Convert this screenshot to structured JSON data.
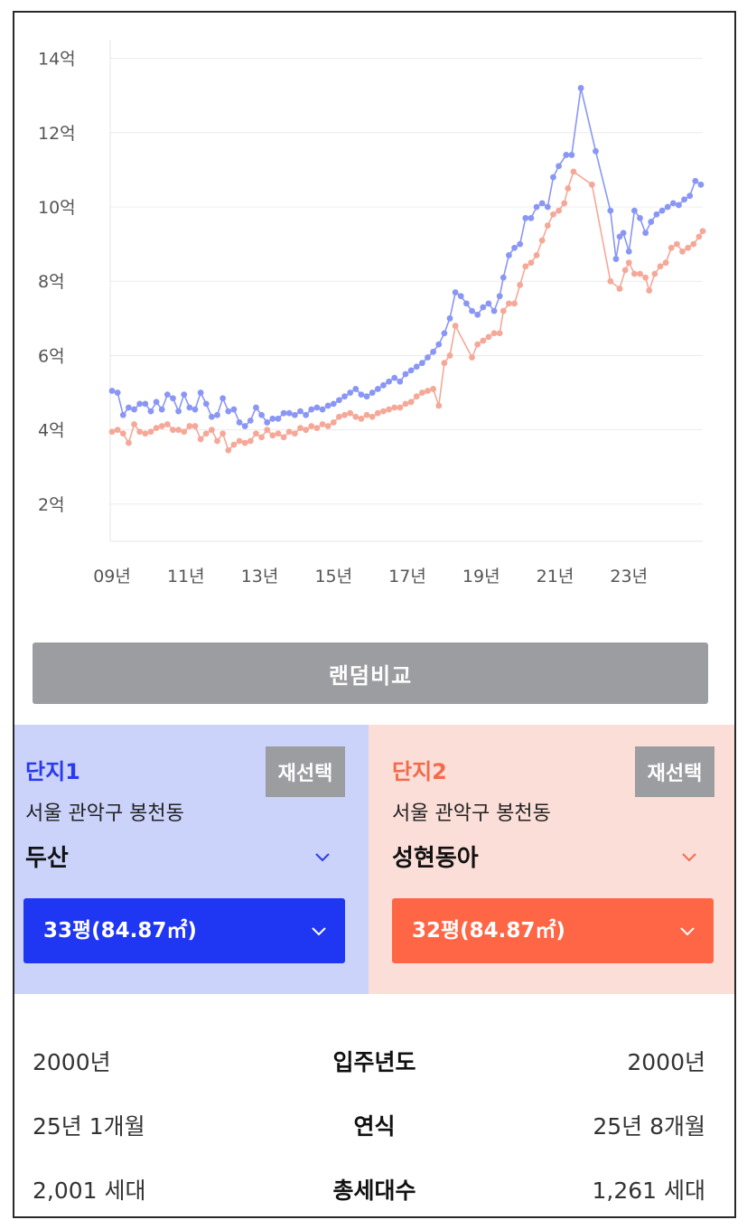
{
  "chart_data": {
    "type": "line",
    "ylim": [
      1,
      14.5
    ],
    "y_ticks": [
      {
        "v": 2,
        "label": "2억"
      },
      {
        "v": 4,
        "label": "4억"
      },
      {
        "v": 6,
        "label": "6억"
      },
      {
        "v": 8,
        "label": "8억"
      },
      {
        "v": 10,
        "label": "10억"
      },
      {
        "v": 12,
        "label": "12억"
      },
      {
        "v": 14,
        "label": "14억"
      }
    ],
    "x_ticks": [
      {
        "v": 2009,
        "label": "09년"
      },
      {
        "v": 2011,
        "label": "11년"
      },
      {
        "v": 2013,
        "label": "13년"
      },
      {
        "v": 2015,
        "label": "15년"
      },
      {
        "v": 2017,
        "label": "17년"
      },
      {
        "v": 2019,
        "label": "19년"
      },
      {
        "v": 2021,
        "label": "21년"
      },
      {
        "v": 2023,
        "label": "23년"
      }
    ],
    "xlim": [
      2008.95,
      2025.0
    ],
    "grid": true,
    "series": [
      {
        "color": "#8a96f5",
        "points": [
          [
            2009.0,
            5.05
          ],
          [
            2009.15,
            5.0
          ],
          [
            2009.3,
            4.4
          ],
          [
            2009.45,
            4.6
          ],
          [
            2009.6,
            4.55
          ],
          [
            2009.75,
            4.7
          ],
          [
            2009.9,
            4.7
          ],
          [
            2010.05,
            4.5
          ],
          [
            2010.2,
            4.75
          ],
          [
            2010.35,
            4.55
          ],
          [
            2010.5,
            4.95
          ],
          [
            2010.65,
            4.85
          ],
          [
            2010.8,
            4.5
          ],
          [
            2010.95,
            4.95
          ],
          [
            2011.1,
            4.6
          ],
          [
            2011.25,
            4.55
          ],
          [
            2011.4,
            5.0
          ],
          [
            2011.55,
            4.7
          ],
          [
            2011.7,
            4.35
          ],
          [
            2011.85,
            4.4
          ],
          [
            2012.0,
            4.85
          ],
          [
            2012.15,
            4.5
          ],
          [
            2012.3,
            4.55
          ],
          [
            2012.45,
            4.2
          ],
          [
            2012.6,
            4.1
          ],
          [
            2012.75,
            4.25
          ],
          [
            2012.9,
            4.6
          ],
          [
            2013.05,
            4.4
          ],
          [
            2013.2,
            4.2
          ],
          [
            2013.35,
            4.3
          ],
          [
            2013.5,
            4.3
          ],
          [
            2013.65,
            4.45
          ],
          [
            2013.8,
            4.45
          ],
          [
            2013.95,
            4.4
          ],
          [
            2014.1,
            4.5
          ],
          [
            2014.25,
            4.4
          ],
          [
            2014.4,
            4.55
          ],
          [
            2014.55,
            4.6
          ],
          [
            2014.7,
            4.55
          ],
          [
            2014.85,
            4.65
          ],
          [
            2015.0,
            4.7
          ],
          [
            2015.15,
            4.8
          ],
          [
            2015.3,
            4.9
          ],
          [
            2015.45,
            5.0
          ],
          [
            2015.6,
            5.1
          ],
          [
            2015.75,
            4.95
          ],
          [
            2015.9,
            4.9
          ],
          [
            2016.05,
            5.0
          ],
          [
            2016.2,
            5.1
          ],
          [
            2016.35,
            5.2
          ],
          [
            2016.5,
            5.3
          ],
          [
            2016.65,
            5.4
          ],
          [
            2016.8,
            5.3
          ],
          [
            2016.95,
            5.5
          ],
          [
            2017.1,
            5.6
          ],
          [
            2017.25,
            5.7
          ],
          [
            2017.4,
            5.8
          ],
          [
            2017.55,
            5.95
          ],
          [
            2017.7,
            6.1
          ],
          [
            2017.85,
            6.3
          ],
          [
            2018.0,
            6.6
          ],
          [
            2018.15,
            7.0
          ],
          [
            2018.3,
            7.7
          ],
          [
            2018.45,
            7.6
          ],
          [
            2018.6,
            7.4
          ],
          [
            2018.75,
            7.2
          ],
          [
            2018.9,
            7.1
          ],
          [
            2019.05,
            7.3
          ],
          [
            2019.2,
            7.4
          ],
          [
            2019.35,
            7.2
          ],
          [
            2019.5,
            7.6
          ],
          [
            2019.6,
            8.1
          ],
          [
            2019.75,
            8.7
          ],
          [
            2019.9,
            8.9
          ],
          [
            2020.05,
            9.0
          ],
          [
            2020.2,
            9.7
          ],
          [
            2020.35,
            9.7
          ],
          [
            2020.5,
            10.0
          ],
          [
            2020.65,
            10.1
          ],
          [
            2020.8,
            10.0
          ],
          [
            2020.95,
            10.8
          ],
          [
            2021.1,
            11.1
          ],
          [
            2021.3,
            11.4
          ],
          [
            2021.45,
            11.4
          ],
          [
            2021.7,
            13.2
          ],
          [
            2022.1,
            11.5
          ],
          [
            2022.5,
            9.9
          ],
          [
            2022.65,
            8.6
          ],
          [
            2022.75,
            9.2
          ],
          [
            2022.85,
            9.3
          ],
          [
            2023.0,
            8.8
          ],
          [
            2023.15,
            9.9
          ],
          [
            2023.3,
            9.7
          ],
          [
            2023.45,
            9.3
          ],
          [
            2023.6,
            9.6
          ],
          [
            2023.75,
            9.8
          ],
          [
            2023.9,
            9.9
          ],
          [
            2024.05,
            10.0
          ],
          [
            2024.2,
            10.1
          ],
          [
            2024.35,
            10.05
          ],
          [
            2024.5,
            10.2
          ],
          [
            2024.65,
            10.3
          ],
          [
            2024.8,
            10.7
          ],
          [
            2024.95,
            10.6
          ]
        ]
      },
      {
        "color": "#f5a898",
        "points": [
          [
            2009.0,
            3.95
          ],
          [
            2009.15,
            4.0
          ],
          [
            2009.3,
            3.9
          ],
          [
            2009.45,
            3.65
          ],
          [
            2009.6,
            4.15
          ],
          [
            2009.75,
            3.95
          ],
          [
            2009.9,
            3.9
          ],
          [
            2010.05,
            3.95
          ],
          [
            2010.2,
            4.05
          ],
          [
            2010.35,
            4.1
          ],
          [
            2010.5,
            4.15
          ],
          [
            2010.65,
            4.0
          ],
          [
            2010.8,
            4.0
          ],
          [
            2010.95,
            3.95
          ],
          [
            2011.1,
            4.1
          ],
          [
            2011.25,
            4.1
          ],
          [
            2011.4,
            3.75
          ],
          [
            2011.55,
            3.9
          ],
          [
            2011.7,
            4.0
          ],
          [
            2011.85,
            3.7
          ],
          [
            2012.0,
            3.9
          ],
          [
            2012.15,
            3.45
          ],
          [
            2012.3,
            3.6
          ],
          [
            2012.45,
            3.7
          ],
          [
            2012.6,
            3.65
          ],
          [
            2012.75,
            3.7
          ],
          [
            2012.9,
            3.9
          ],
          [
            2013.05,
            3.8
          ],
          [
            2013.2,
            4.0
          ],
          [
            2013.35,
            3.85
          ],
          [
            2013.5,
            3.9
          ],
          [
            2013.65,
            3.8
          ],
          [
            2013.8,
            3.95
          ],
          [
            2013.95,
            3.9
          ],
          [
            2014.1,
            4.05
          ],
          [
            2014.25,
            4.0
          ],
          [
            2014.4,
            4.1
          ],
          [
            2014.55,
            4.05
          ],
          [
            2014.7,
            4.15
          ],
          [
            2014.85,
            4.1
          ],
          [
            2015.0,
            4.2
          ],
          [
            2015.15,
            4.35
          ],
          [
            2015.3,
            4.4
          ],
          [
            2015.45,
            4.45
          ],
          [
            2015.6,
            4.35
          ],
          [
            2015.75,
            4.3
          ],
          [
            2015.9,
            4.4
          ],
          [
            2016.05,
            4.35
          ],
          [
            2016.2,
            4.45
          ],
          [
            2016.35,
            4.5
          ],
          [
            2016.5,
            4.55
          ],
          [
            2016.65,
            4.6
          ],
          [
            2016.8,
            4.6
          ],
          [
            2016.95,
            4.7
          ],
          [
            2017.1,
            4.75
          ],
          [
            2017.25,
            4.9
          ],
          [
            2017.4,
            5.0
          ],
          [
            2017.55,
            5.05
          ],
          [
            2017.7,
            5.1
          ],
          [
            2017.85,
            4.65
          ],
          [
            2018.0,
            5.8
          ],
          [
            2018.15,
            6.0
          ],
          [
            2018.3,
            6.8
          ],
          [
            2018.75,
            5.95
          ],
          [
            2018.9,
            6.3
          ],
          [
            2019.05,
            6.4
          ],
          [
            2019.2,
            6.5
          ],
          [
            2019.35,
            6.6
          ],
          [
            2019.5,
            6.6
          ],
          [
            2019.6,
            7.2
          ],
          [
            2019.75,
            7.4
          ],
          [
            2019.9,
            7.4
          ],
          [
            2020.05,
            7.9
          ],
          [
            2020.2,
            8.4
          ],
          [
            2020.35,
            8.5
          ],
          [
            2020.5,
            8.7
          ],
          [
            2020.65,
            9.1
          ],
          [
            2020.8,
            9.5
          ],
          [
            2020.95,
            9.8
          ],
          [
            2021.1,
            9.9
          ],
          [
            2021.25,
            10.1
          ],
          [
            2021.35,
            10.5
          ],
          [
            2021.5,
            10.95
          ],
          [
            2022.0,
            10.6
          ],
          [
            2022.5,
            8.0
          ],
          [
            2022.75,
            7.8
          ],
          [
            2022.9,
            8.3
          ],
          [
            2023.0,
            8.5
          ],
          [
            2023.15,
            8.2
          ],
          [
            2023.3,
            8.2
          ],
          [
            2023.45,
            8.1
          ],
          [
            2023.55,
            7.75
          ],
          [
            2023.7,
            8.2
          ],
          [
            2023.85,
            8.4
          ],
          [
            2024.0,
            8.5
          ],
          [
            2024.15,
            8.9
          ],
          [
            2024.3,
            9.0
          ],
          [
            2024.45,
            8.8
          ],
          [
            2024.6,
            8.9
          ],
          [
            2024.75,
            9.0
          ],
          [
            2024.9,
            9.2
          ],
          [
            2025.0,
            9.35
          ]
        ]
      }
    ]
  },
  "random_button": "랜덤비교",
  "panel1": {
    "title": "단지1",
    "reselect": "재선택",
    "address": "서울 관악구 봉천동",
    "apt_name": "두산",
    "size": "33평(84.87㎡)",
    "accent": "#1f36f2"
  },
  "panel2": {
    "title": "단지2",
    "reselect": "재선택",
    "address": "서울 관악구 봉천동",
    "apt_name": "성현동아",
    "size": "32평(84.87㎡)",
    "accent": "#ff6645"
  },
  "info": [
    {
      "left": "2000년",
      "label": "입주년도",
      "right": "2000년"
    },
    {
      "left": "25년 1개월",
      "label": "연식",
      "right": "25년 8개월"
    },
    {
      "left": "2,001 세대",
      "label": "총세대수",
      "right": "1,261 세대"
    }
  ]
}
